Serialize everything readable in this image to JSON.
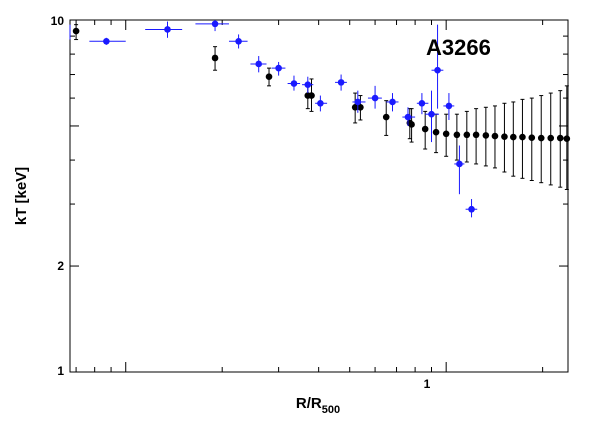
{
  "chart_data": {
    "type": "scatter",
    "title": "",
    "annotation": "A3266",
    "xlabel": "R/R",
    "xlabel_sub": "500",
    "ylabel": "kT [keV]",
    "xscale": "log",
    "yscale": "log",
    "xlim": [
      0.067,
      2.4
    ],
    "ylim": [
      1,
      10
    ],
    "y_tick_labels": [
      "1",
      "2",
      "10"
    ],
    "x_tick_labels": [
      "1"
    ],
    "grid": false,
    "legend": "none",
    "series": [
      {
        "color": "#000000",
        "points": [
          {
            "x": 0.07,
            "y": 9.3,
            "ylo": 8.8,
            "yhi": 9.7
          },
          {
            "x": 0.19,
            "y": 7.8,
            "ylo": 7.2,
            "yhi": 8.4
          },
          {
            "x": 0.28,
            "y": 6.9,
            "ylo": 6.5,
            "yhi": 7.3
          },
          {
            "x": 0.37,
            "y": 6.1,
            "ylo": 5.6,
            "yhi": 6.6
          },
          {
            "x": 0.38,
            "y": 6.1,
            "ylo": 5.5,
            "yhi": 6.8
          },
          {
            "x": 0.52,
            "y": 5.65,
            "ylo": 5.1,
            "yhi": 6.2
          },
          {
            "x": 0.54,
            "y": 5.65,
            "ylo": 5.2,
            "yhi": 6.1
          },
          {
            "x": 0.65,
            "y": 5.3,
            "ylo": 4.7,
            "yhi": 5.9
          },
          {
            "x": 0.77,
            "y": 5.1,
            "ylo": 4.6,
            "yhi": 5.6
          },
          {
            "x": 0.78,
            "y": 5.05,
            "ylo": 4.5,
            "yhi": 5.6
          },
          {
            "x": 0.86,
            "y": 4.9,
            "ylo": 4.3,
            "yhi": 5.5
          },
          {
            "x": 0.93,
            "y": 4.8,
            "ylo": 4.2,
            "yhi": 5.4
          },
          {
            "x": 1.0,
            "y": 4.75,
            "ylo": 4.1,
            "yhi": 5.4
          },
          {
            "x": 1.08,
            "y": 4.72,
            "ylo": 4.0,
            "yhi": 5.4
          },
          {
            "x": 1.16,
            "y": 4.72,
            "ylo": 3.95,
            "yhi": 5.5
          },
          {
            "x": 1.24,
            "y": 4.72,
            "ylo": 3.9,
            "yhi": 5.6
          },
          {
            "x": 1.33,
            "y": 4.7,
            "ylo": 3.85,
            "yhi": 5.65
          },
          {
            "x": 1.42,
            "y": 4.68,
            "ylo": 3.8,
            "yhi": 5.7
          },
          {
            "x": 1.52,
            "y": 4.66,
            "ylo": 3.7,
            "yhi": 5.8
          },
          {
            "x": 1.62,
            "y": 4.65,
            "ylo": 3.6,
            "yhi": 5.85
          },
          {
            "x": 1.73,
            "y": 4.65,
            "ylo": 3.55,
            "yhi": 5.95
          },
          {
            "x": 1.85,
            "y": 4.63,
            "ylo": 3.5,
            "yhi": 6.0
          },
          {
            "x": 1.98,
            "y": 4.62,
            "ylo": 3.45,
            "yhi": 6.1
          },
          {
            "x": 2.12,
            "y": 4.62,
            "ylo": 3.4,
            "yhi": 6.2
          },
          {
            "x": 2.27,
            "y": 4.62,
            "ylo": 3.35,
            "yhi": 6.3
          },
          {
            "x": 2.38,
            "y": 4.6,
            "ylo": 3.3,
            "yhi": 6.5
          }
        ]
      },
      {
        "color": "#1a1aff",
        "points": [
          {
            "x": 0.063,
            "y": 9.3,
            "xlo": 0.058,
            "xhi": 0.066,
            "ylo": 8.8,
            "yhi": 9.7
          },
          {
            "x": 0.087,
            "y": 8.7,
            "xlo": 0.077,
            "xhi": 0.1,
            "ylo": 8.5,
            "yhi": 8.9
          },
          {
            "x": 0.135,
            "y": 9.4,
            "xlo": 0.115,
            "xhi": 0.15,
            "ylo": 8.9,
            "yhi": 9.9
          },
          {
            "x": 0.19,
            "y": 9.75,
            "xlo": 0.165,
            "xhi": 0.21,
            "ylo": 9.3,
            "yhi": 10.0
          },
          {
            "x": 0.225,
            "y": 8.7,
            "xlo": 0.21,
            "xhi": 0.24,
            "ylo": 8.3,
            "yhi": 9.1
          },
          {
            "x": 0.26,
            "y": 7.5,
            "xlo": 0.245,
            "xhi": 0.275,
            "ylo": 7.1,
            "yhi": 7.9
          },
          {
            "x": 0.3,
            "y": 7.3,
            "xlo": 0.285,
            "xhi": 0.315,
            "ylo": 6.95,
            "yhi": 7.6
          },
          {
            "x": 0.335,
            "y": 6.6,
            "xlo": 0.32,
            "xhi": 0.35,
            "ylo": 6.3,
            "yhi": 6.95
          },
          {
            "x": 0.37,
            "y": 6.55,
            "xlo": 0.355,
            "xhi": 0.385,
            "ylo": 6.2,
            "yhi": 6.9
          },
          {
            "x": 0.405,
            "y": 5.8,
            "xlo": 0.39,
            "xhi": 0.425,
            "ylo": 5.5,
            "yhi": 6.1
          },
          {
            "x": 0.47,
            "y": 6.65,
            "xlo": 0.45,
            "xhi": 0.49,
            "ylo": 6.3,
            "yhi": 7.0
          },
          {
            "x": 0.53,
            "y": 5.85,
            "xlo": 0.51,
            "xhi": 0.56,
            "ylo": 5.45,
            "yhi": 6.3
          },
          {
            "x": 0.6,
            "y": 6.0,
            "xlo": 0.57,
            "xhi": 0.63,
            "ylo": 5.6,
            "yhi": 6.5
          },
          {
            "x": 0.68,
            "y": 5.85,
            "xlo": 0.65,
            "xhi": 0.71,
            "ylo": 5.5,
            "yhi": 6.2
          },
          {
            "x": 0.76,
            "y": 5.3,
            "xlo": 0.73,
            "xhi": 0.8,
            "ylo": 5.0,
            "yhi": 5.65
          },
          {
            "x": 0.84,
            "y": 5.8,
            "xlo": 0.81,
            "xhi": 0.88,
            "ylo": 5.4,
            "yhi": 6.2
          },
          {
            "x": 0.9,
            "y": 5.4,
            "xlo": 0.86,
            "xhi": 0.95,
            "ylo": 4.5,
            "yhi": 6.3
          },
          {
            "x": 0.94,
            "y": 7.2,
            "xlo": 0.9,
            "xhi": 0.98,
            "ylo": 5.6,
            "yhi": 9.7
          },
          {
            "x": 1.02,
            "y": 5.7,
            "xlo": 0.98,
            "xhi": 1.06,
            "ylo": 5.2,
            "yhi": 6.2
          },
          {
            "x": 1.1,
            "y": 3.9,
            "xlo": 1.06,
            "xhi": 1.14,
            "ylo": 3.2,
            "yhi": 4.4
          },
          {
            "x": 1.2,
            "y": 2.9,
            "xlo": 1.15,
            "xhi": 1.25,
            "ylo": 2.75,
            "yhi": 3.1
          }
        ]
      }
    ]
  }
}
